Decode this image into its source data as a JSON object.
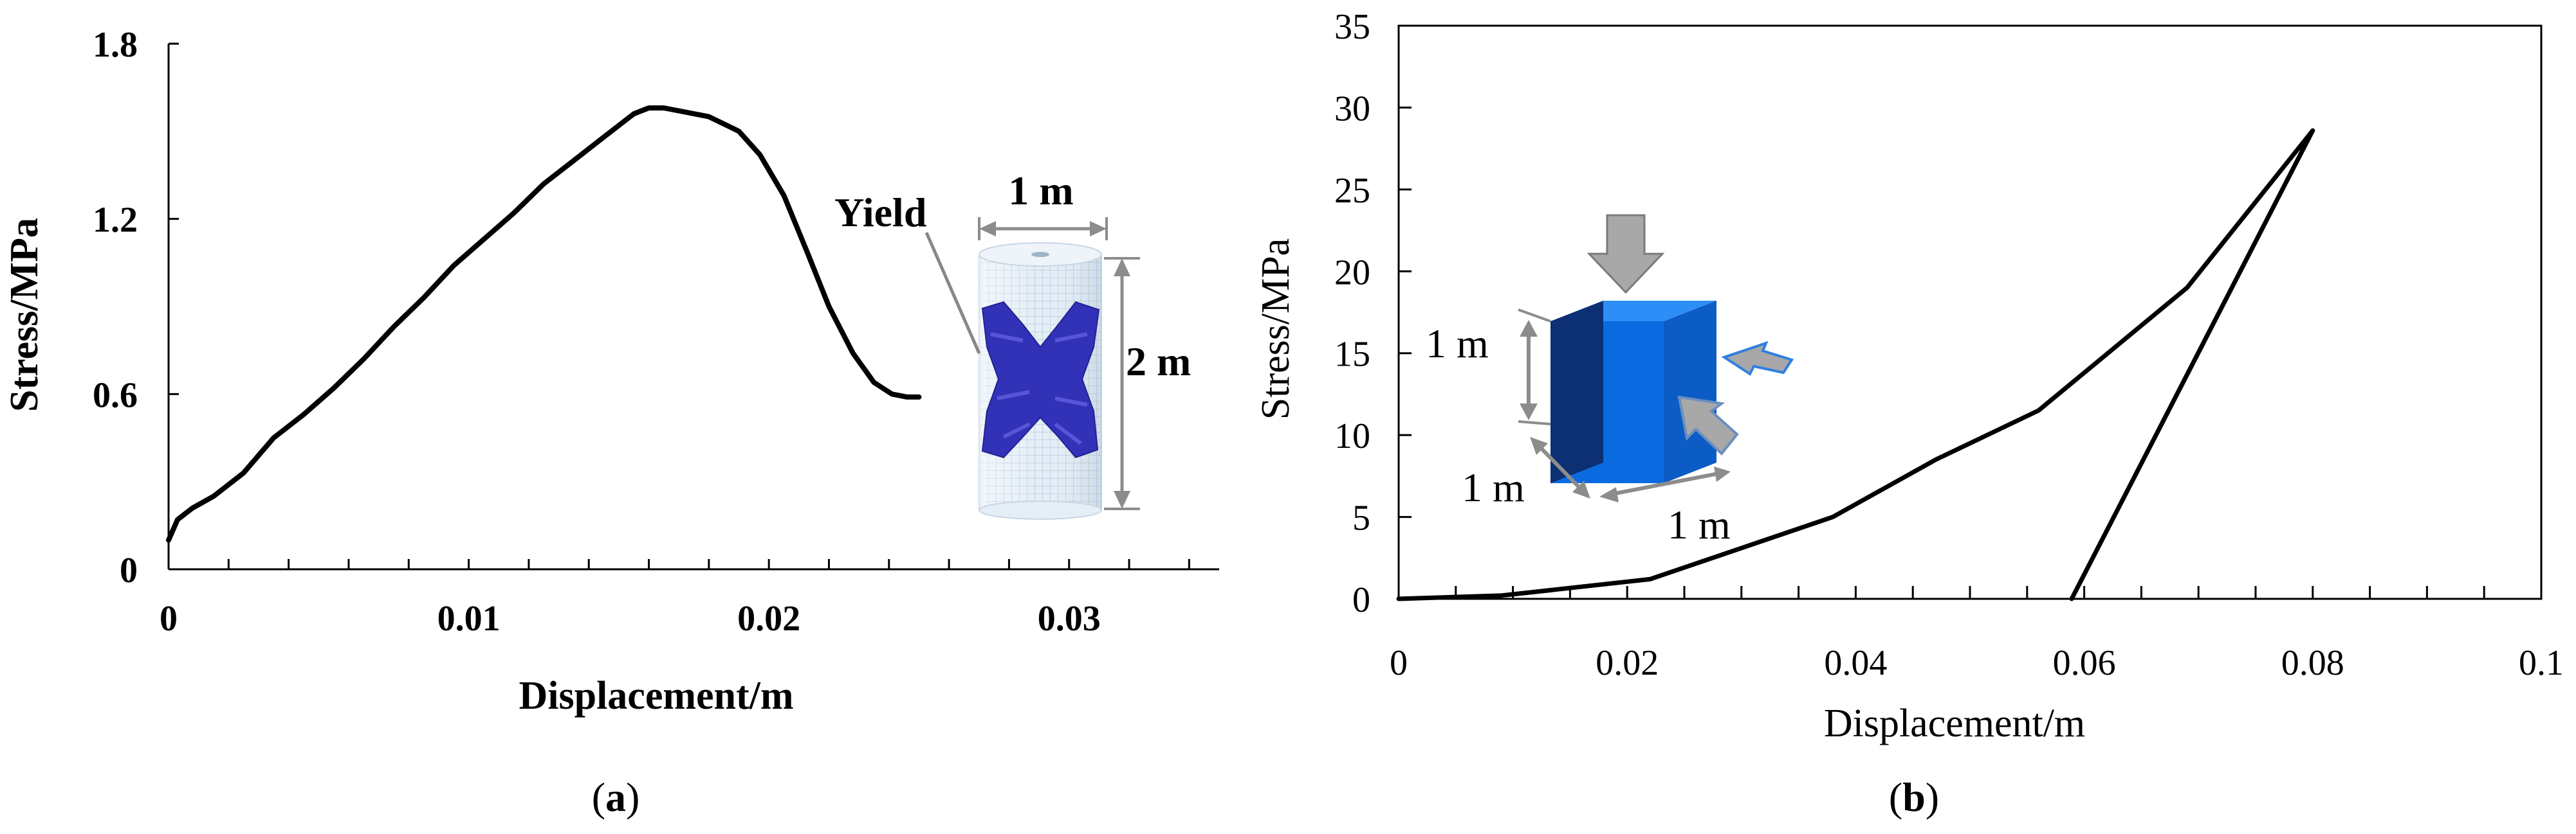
{
  "chart_data": [
    {
      "panel": "(a)",
      "type": "line",
      "xlabel": "Displacement/m",
      "ylabel": "Stress/MPa",
      "xlim": [
        0,
        0.035
      ],
      "ylim": [
        0,
        1.8
      ],
      "xticks": [
        0,
        0.01,
        0.02,
        0.03
      ],
      "xtick_labels": [
        "0",
        "0.01",
        "0.02",
        "0.03"
      ],
      "yticks": [
        0,
        0.6,
        1.2,
        1.8
      ],
      "ytick_labels": [
        "0",
        "0.6",
        "1.2",
        "1.8"
      ],
      "grid": false,
      "series": [
        {
          "x": [
            0,
            0.0003,
            0.0008,
            0.0015,
            0.0025,
            0.0035,
            0.0045,
            0.0055,
            0.0065,
            0.0075,
            0.0085,
            0.0095,
            0.0105,
            0.0115,
            0.0125,
            0.0135,
            0.0145,
            0.0155,
            0.016,
            0.0165,
            0.017,
            0.018,
            0.019,
            0.0197,
            0.0205,
            0.0213,
            0.022,
            0.0228,
            0.0235,
            0.0241,
            0.0246,
            0.025
          ],
          "y": [
            0.1,
            0.17,
            0.21,
            0.25,
            0.33,
            0.45,
            0.53,
            0.62,
            0.72,
            0.83,
            0.93,
            1.04,
            1.13,
            1.22,
            1.32,
            1.4,
            1.48,
            1.56,
            1.58,
            1.58,
            1.57,
            1.55,
            1.5,
            1.42,
            1.28,
            1.08,
            0.9,
            0.74,
            0.64,
            0.6,
            0.59,
            0.59
          ]
        }
      ],
      "annotations": [
        "Yield",
        "1 m",
        "2 m"
      ],
      "caption_letter": "a",
      "colors": {
        "line": "#000000",
        "yield_zone": "#2f2fb5",
        "specimen": "#dfeaf5",
        "dimension_arrow": "#8c8c8c"
      },
      "inset": "cylinder-specimen"
    },
    {
      "panel": "(b)",
      "type": "line",
      "xlabel": "Displacement/m",
      "ylabel": "Stress/MPa",
      "xlim": [
        0,
        0.1
      ],
      "ylim": [
        0,
        35
      ],
      "xticks": [
        0,
        0.02,
        0.04,
        0.06,
        0.08,
        0.1
      ],
      "xtick_labels": [
        "0",
        "0.02",
        "0.04",
        "0.06",
        "0.08",
        "0.1"
      ],
      "yticks": [
        0,
        5,
        10,
        15,
        20,
        25,
        30,
        35
      ],
      "ytick_labels": [
        "0",
        "5",
        "10",
        "15",
        "20",
        "25",
        "30",
        "35"
      ],
      "grid": false,
      "series": [
        {
          "x": [
            0,
            0.009,
            0.022,
            0.038,
            0.047,
            0.056,
            0.069,
            0.08,
            0.0589
          ],
          "y": [
            0,
            0.2,
            1.2,
            5,
            8.5,
            11.5,
            19,
            28.6,
            0
          ]
        }
      ],
      "annotations": [
        "1 m",
        "1 m",
        "1 m"
      ],
      "caption_letter": "b",
      "colors": {
        "line": "#000000",
        "cube_front": "#0a6be0",
        "cube_top": "#1f86f5",
        "cube_side": "#0d2f73",
        "load_arrow": "#a8a8a8",
        "dimension_arrow": "#8c8c8c"
      },
      "inset": "cube-specimen"
    }
  ]
}
